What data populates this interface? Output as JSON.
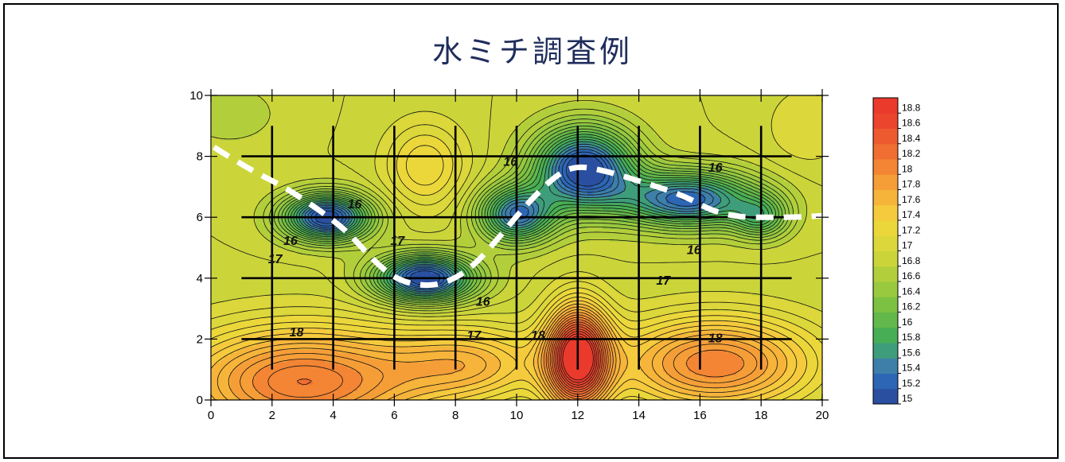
{
  "title": "水ミチ調査例",
  "chart_data": {
    "type": "heatmap",
    "title": "水ミチ調査例",
    "xlabel": "",
    "ylabel": "",
    "xlim": [
      0,
      20
    ],
    "ylim": [
      0,
      10
    ],
    "x_ticks": [
      0,
      2,
      4,
      6,
      8,
      10,
      12,
      14,
      16,
      18,
      20
    ],
    "y_ticks": [
      0,
      2,
      4,
      6,
      8,
      10
    ],
    "colorbar": {
      "min": 15,
      "max": 19,
      "step": 0.2,
      "labels": [
        "18.8",
        "18.6",
        "18.4",
        "18.2",
        "18",
        "17.8",
        "17.6",
        "17.4",
        "17.2",
        "17",
        "16.8",
        "16.6",
        "16.4",
        "16.2",
        "16",
        "15.8",
        "15.6",
        "15.4",
        "15.2",
        "15"
      ],
      "colors": [
        "#2a4fa0",
        "#2d66b4",
        "#3d7fa8",
        "#3e9d7b",
        "#48ae55",
        "#62b84a",
        "#7dc143",
        "#98c93f",
        "#b2cf3b",
        "#cbd53a",
        "#dcd73a",
        "#ecd73b",
        "#f5ca3d",
        "#f6b43b",
        "#f59e38",
        "#f38534",
        "#f06e31",
        "#ee5a2f",
        "#ec452d",
        "#ea3a2c"
      ]
    },
    "contour_labels": [
      {
        "x": 4.7,
        "y": 6.4,
        "text": "16"
      },
      {
        "x": 2.6,
        "y": 5.2,
        "text": "16"
      },
      {
        "x": 2.1,
        "y": 4.6,
        "text": "17"
      },
      {
        "x": 6.1,
        "y": 5.2,
        "text": "17"
      },
      {
        "x": 9.8,
        "y": 7.8,
        "text": "16"
      },
      {
        "x": 16.5,
        "y": 7.6,
        "text": "16"
      },
      {
        "x": 15.8,
        "y": 4.9,
        "text": "16"
      },
      {
        "x": 8.9,
        "y": 3.2,
        "text": "16"
      },
      {
        "x": 14.8,
        "y": 3.9,
        "text": "17"
      },
      {
        "x": 2.8,
        "y": 2.2,
        "text": "18"
      },
      {
        "x": 8.6,
        "y": 2.1,
        "text": "17"
      },
      {
        "x": 10.7,
        "y": 2.1,
        "text": "18"
      },
      {
        "x": 16.5,
        "y": 2.0,
        "text": "18"
      }
    ],
    "survey_lines_horizontal": [
      {
        "y": 8,
        "x_from": 1,
        "x_to": 19
      },
      {
        "y": 6,
        "x_from": 1,
        "x_to": 19
      },
      {
        "y": 4,
        "x_from": 1,
        "x_to": 19
      },
      {
        "y": 2,
        "x_from": 1,
        "x_to": 19
      }
    ],
    "survey_lines_vertical": [
      {
        "x": 2,
        "y_from": 1,
        "y_to": 9
      },
      {
        "x": 4,
        "y_from": 1,
        "y_to": 9
      },
      {
        "x": 6,
        "y_from": 1,
        "y_to": 9
      },
      {
        "x": 8,
        "y_from": 1,
        "y_to": 9
      },
      {
        "x": 10,
        "y_from": 1,
        "y_to": 9
      },
      {
        "x": 12,
        "y_from": 1,
        "y_to": 9
      },
      {
        "x": 14,
        "y_from": 1,
        "y_to": 9
      },
      {
        "x": 16,
        "y_from": 1,
        "y_to": 9
      },
      {
        "x": 18,
        "y_from": 1,
        "y_to": 9
      }
    ],
    "water_path": [
      [
        0.1,
        8.3
      ],
      [
        1.2,
        7.6
      ],
      [
        2.4,
        7.0
      ],
      [
        3.6,
        6.2
      ],
      [
        4.5,
        5.5
      ],
      [
        5.3,
        4.6
      ],
      [
        6.0,
        4.0
      ],
      [
        6.8,
        3.75
      ],
      [
        7.6,
        3.8
      ],
      [
        8.5,
        4.3
      ],
      [
        9.4,
        5.3
      ],
      [
        10.3,
        6.4
      ],
      [
        11.3,
        7.4
      ],
      [
        12.0,
        7.7
      ],
      [
        13.0,
        7.5
      ],
      [
        14.3,
        7.1
      ],
      [
        15.5,
        6.7
      ],
      [
        16.4,
        6.2
      ],
      [
        17.3,
        6.0
      ],
      [
        18.3,
        6.0
      ],
      [
        19.2,
        6.0
      ],
      [
        20.0,
        6.05
      ]
    ],
    "field_features": {
      "base": 16.9,
      "features": [
        {
          "x": 3.8,
          "y": 6.0,
          "sx": 1.4,
          "sy": 0.75,
          "a": -1.85
        },
        {
          "x": 7.0,
          "y": 4.0,
          "sx": 1.6,
          "sy": 0.75,
          "a": -1.9
        },
        {
          "x": 10.0,
          "y": 6.1,
          "sx": 1.2,
          "sy": 0.9,
          "a": -1.5
        },
        {
          "x": 12.2,
          "y": 7.6,
          "sx": 1.6,
          "sy": 1.3,
          "a": -1.9
        },
        {
          "x": 15.6,
          "y": 6.6,
          "sx": 2.2,
          "sy": 0.9,
          "a": -1.6
        },
        {
          "x": 18.0,
          "y": 6.0,
          "sx": 0.9,
          "sy": 0.7,
          "a": -0.8
        },
        {
          "x": 12.0,
          "y": 1.4,
          "sx": 1.0,
          "sy": 1.6,
          "a": 2.2
        },
        {
          "x": 3.0,
          "y": 0.6,
          "sx": 4.0,
          "sy": 1.8,
          "a": 1.3
        },
        {
          "x": 16.5,
          "y": 1.2,
          "sx": 3.2,
          "sy": 1.5,
          "a": 1.2
        },
        {
          "x": 8.5,
          "y": 1.2,
          "sx": 2.5,
          "sy": 1.2,
          "a": 0.7
        },
        {
          "x": 7.0,
          "y": 7.7,
          "sx": 1.3,
          "sy": 1.4,
          "a": 0.5
        },
        {
          "x": 0.6,
          "y": 9.4,
          "sx": 1.6,
          "sy": 1.0,
          "a": -0.2
        },
        {
          "x": 19.5,
          "y": 9.0,
          "sx": 1.4,
          "sy": 1.4,
          "a": 0.2
        }
      ]
    }
  }
}
